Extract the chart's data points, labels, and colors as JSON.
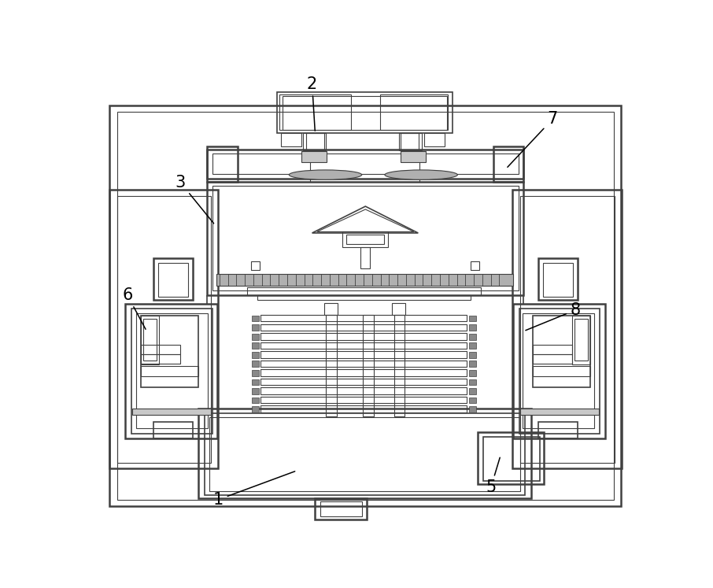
{
  "bg_color": "#ffffff",
  "lc": "#404040",
  "lw_thick": 1.8,
  "lw_med": 1.2,
  "lw_thin": 0.8,
  "gray_hatch": "#b0b0b0",
  "gray_stripe": "#c8c8c8",
  "label_fs": 15
}
